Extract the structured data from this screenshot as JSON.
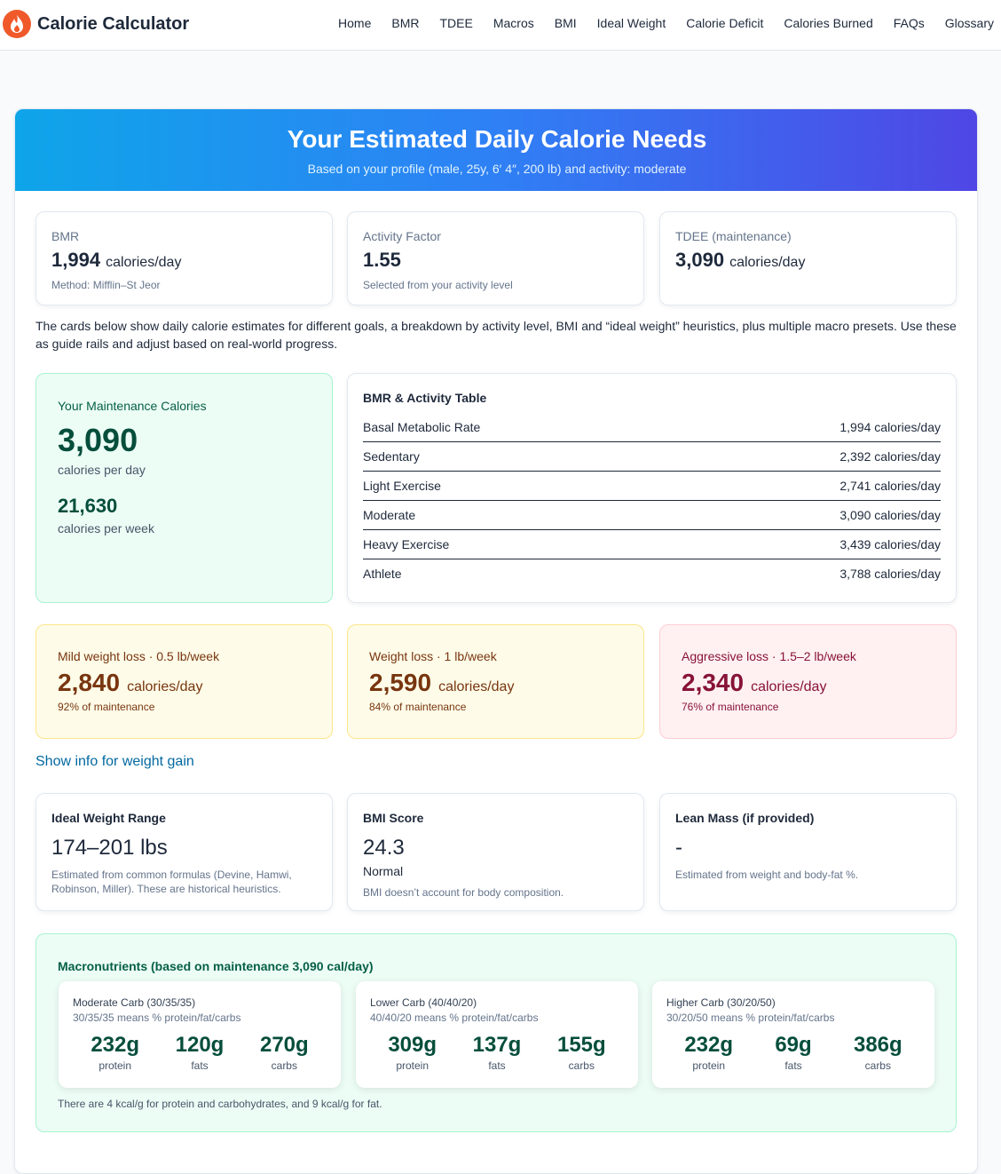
{
  "header": {
    "brand": "Calorie Calculator",
    "nav": [
      "Home",
      "BMR",
      "TDEE",
      "Macros",
      "BMI",
      "Ideal Weight",
      "Calorie Deficit",
      "Calories Burned",
      "FAQs",
      "Glossary"
    ]
  },
  "banner": {
    "title": "Your Estimated Daily Calorie Needs",
    "subtitle": "Based on your profile (male, 25y, 6′ 4″, 200 lb) and activity: moderate"
  },
  "stats": [
    {
      "label": "BMR",
      "value": "1,994",
      "unit": "calories/day",
      "note": "Method: Mifflin–St Jeor"
    },
    {
      "label": "Activity Factor",
      "value": "1.55",
      "note": "Selected from your activity level"
    },
    {
      "label": "TDEE (maintenance)",
      "value": "3,090",
      "unit": "calories/day"
    }
  ],
  "intro": "The cards below show daily calorie estimates for different goals, a breakdown by activity level, BMI and “ideal weight” heuristics, plus multiple macro presets. Use these as guide rails and adjust based on real-world progress.",
  "maintenance": {
    "label": "Your Maintenance Calories",
    "daily": "3,090",
    "daily_unit": "calories per day",
    "weekly": "21,630",
    "weekly_unit": "calories per week"
  },
  "activity_table": {
    "title": "BMR & Activity Table",
    "rows": [
      [
        "Basal Metabolic Rate",
        "1,994 calories/day"
      ],
      [
        "Sedentary",
        "2,392 calories/day"
      ],
      [
        "Light Exercise",
        "2,741 calories/day"
      ],
      [
        "Moderate",
        "3,090 calories/day"
      ],
      [
        "Heavy Exercise",
        "3,439 calories/day"
      ],
      [
        "Athlete",
        "3,788 calories/day"
      ]
    ]
  },
  "goals": [
    {
      "label": "Mild weight loss · 0.5 lb/week",
      "value": "2,840",
      "unit": "calories/day",
      "note": "92% of maintenance"
    },
    {
      "label": "Weight loss · 1 lb/week",
      "value": "2,590",
      "unit": "calories/day",
      "note": "84% of maintenance"
    },
    {
      "label": "Aggressive loss · 1.5–2 lb/week",
      "value": "2,340",
      "unit": "calories/day",
      "note": "76% of maintenance"
    }
  ],
  "weight_gain_link": "Show info for weight gain",
  "info_cards": [
    {
      "title": "Ideal Weight Range",
      "value": "174–201 lbs",
      "note": "Estimated from common formulas (Devine, Hamwi, Robinson, Miller). These are historical heuristics."
    },
    {
      "title": "BMI Score",
      "value": "24.3",
      "category": "Normal",
      "note": "BMI doesn’t account for body composition."
    },
    {
      "title": "Lean Mass (if provided)",
      "value": "-",
      "note": "Estimated from weight and body-fat %."
    }
  ],
  "macros": {
    "title": "Macronutrients (based on maintenance 3,090 cal/day)",
    "presets": [
      {
        "name": "Moderate Carb (30/35/35)",
        "desc": "30/35/35 means % protein/fat/carbs",
        "items": [
          {
            "amount": "232g",
            "label": "protein"
          },
          {
            "amount": "120g",
            "label": "fats"
          },
          {
            "amount": "270g",
            "label": "carbs"
          }
        ]
      },
      {
        "name": "Lower Carb (40/40/20)",
        "desc": "40/40/20 means % protein/fat/carbs",
        "items": [
          {
            "amount": "309g",
            "label": "protein"
          },
          {
            "amount": "137g",
            "label": "fats"
          },
          {
            "amount": "155g",
            "label": "carbs"
          }
        ]
      },
      {
        "name": "Higher Carb (30/20/50)",
        "desc": "30/20/50 means % protein/fat/carbs",
        "items": [
          {
            "amount": "232g",
            "label": "protein"
          },
          {
            "amount": "69g",
            "label": "fats"
          },
          {
            "amount": "386g",
            "label": "carbs"
          }
        ]
      }
    ],
    "footnote": "There are 4 kcal/g for protein and carbohydrates, and 9 kcal/g for fat."
  }
}
